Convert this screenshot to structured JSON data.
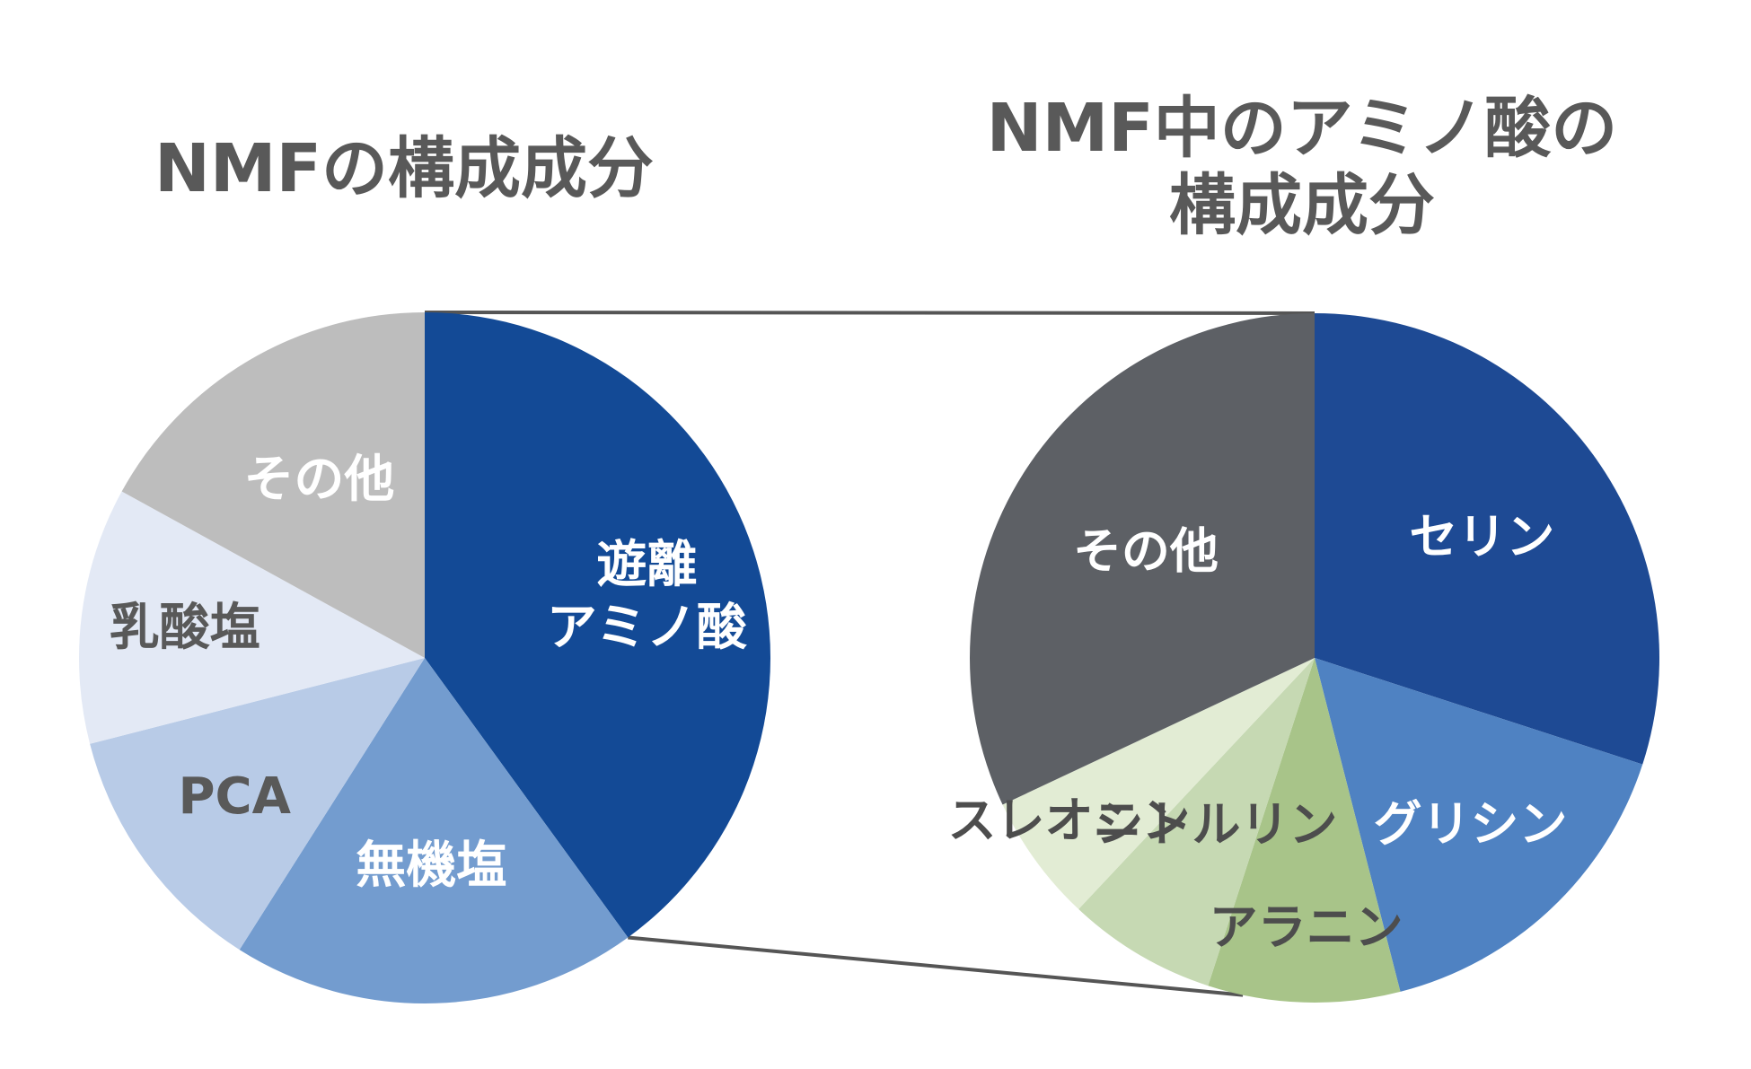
{
  "chart_data": [
    {
      "type": "pie",
      "title": "NMFの構成成分",
      "slices": [
        {
          "label": "遊離アミノ酸",
          "label_lines": [
            "遊離",
            "アミノ酸"
          ],
          "value": 40,
          "color": "#134a96",
          "text_color": "#ffffff"
        },
        {
          "label": "無機塩",
          "value": 19,
          "color": "#739ccf",
          "text_color": "#ffffff"
        },
        {
          "label": "PCA",
          "value": 12,
          "color": "#b8cbe7",
          "text_color": "#595959"
        },
        {
          "label": "乳酸塩",
          "value": 12,
          "color": "#e3e9f5",
          "text_color": "#595959"
        },
        {
          "label": "その他",
          "value": 17,
          "color": "#bdbdbd",
          "text_color": "#ffffff"
        }
      ]
    },
    {
      "type": "pie",
      "title": "NMF中のアミノ酸の構成成分",
      "title_lines": [
        "NMF中のアミノ酸の",
        "構成成分"
      ],
      "slices": [
        {
          "label": "セリン",
          "value": 30,
          "color": "#1e4a94",
          "text_color": "#ffffff"
        },
        {
          "label": "グリシン",
          "value": 16,
          "color": "#4f82c2",
          "text_color": "#ffffff"
        },
        {
          "label": "アラニン",
          "value": 9,
          "color": "#a8c489",
          "text_color": "#4d4d4d"
        },
        {
          "label": "シトルリン",
          "value": 7,
          "color": "#c6d9b3",
          "text_color": "#4d4d4d"
        },
        {
          "label": "スレオニン",
          "value": 6,
          "color": "#e2ecd4",
          "text_color": "#4d4d4d"
        },
        {
          "label": "その他",
          "value": 32,
          "color": "#5d6065",
          "text_color": "#ffffff"
        }
      ]
    }
  ],
  "connector_color": "#555555"
}
